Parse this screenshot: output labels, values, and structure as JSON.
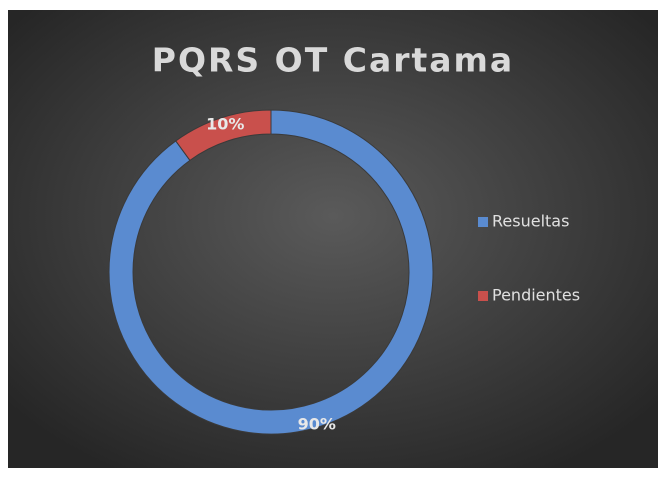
{
  "chart_data": {
    "type": "doughnut",
    "title": "PQRS OT Cartama",
    "categories": [
      "Resueltas",
      "Pendientes"
    ],
    "values": [
      90,
      10
    ],
    "value_labels": [
      "90%",
      "10%"
    ],
    "colors": [
      "#5a8bd0",
      "#c9504c"
    ],
    "legend": "right"
  }
}
